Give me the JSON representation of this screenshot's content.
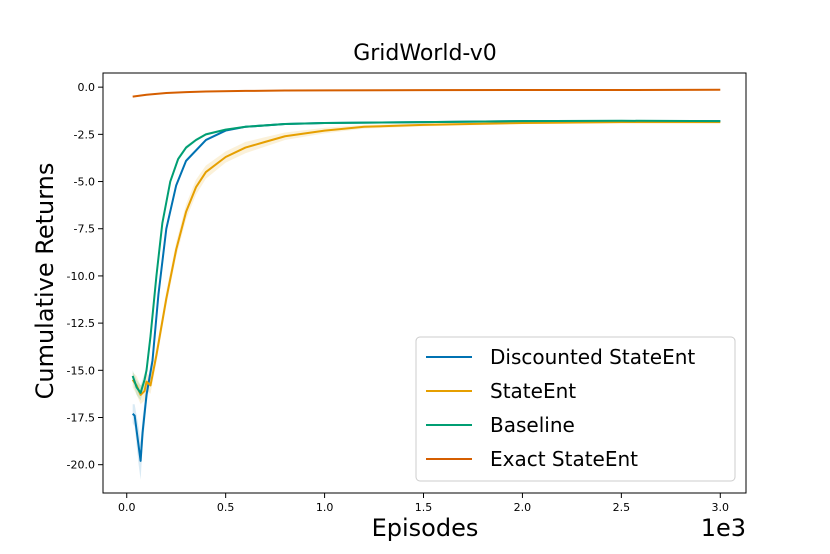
{
  "chart_data": {
    "type": "line",
    "title": "GridWorld-v0",
    "xlabel": "Episodes",
    "ylabel": "Cumulative Returns",
    "x_multiplier_label": "1e3",
    "xlim": [
      -0.12,
      3.13
    ],
    "ylim": [
      -21.5,
      0.75
    ],
    "x_ticks": [
      0.0,
      0.5,
      1.0,
      1.5,
      2.0,
      2.5,
      3.0
    ],
    "x_tick_labels": [
      "0.0",
      "0.5",
      "1.0",
      "1.5",
      "2.0",
      "2.5",
      "3.0"
    ],
    "y_ticks": [
      0.0,
      -2.5,
      -5.0,
      -7.5,
      -10.0,
      -12.5,
      -15.0,
      -17.5,
      -20.0
    ],
    "y_tick_labels": [
      "0.0",
      "-2.5",
      "-5.0",
      "-7.5",
      "-10.0",
      "-12.5",
      "-15.0",
      "-17.5",
      "-20.0"
    ],
    "grid": false,
    "legend_position": "lower-right",
    "series": [
      {
        "name": "Discounted StateEnt",
        "color": "#0072b2",
        "x": [
          0.03,
          0.04,
          0.05,
          0.06,
          0.07,
          0.08,
          0.1,
          0.13,
          0.16,
          0.2,
          0.25,
          0.3,
          0.4,
          0.5,
          0.6,
          0.8,
          1.0,
          1.5,
          2.0,
          2.5,
          3.0
        ],
        "y": [
          -17.3,
          -17.4,
          -18.2,
          -19.0,
          -19.8,
          -18.3,
          -16.3,
          -14.5,
          -11.0,
          -7.5,
          -5.2,
          -3.9,
          -2.8,
          -2.3,
          -2.1,
          -1.95,
          -1.9,
          -1.85,
          -1.8,
          -1.8,
          -1.8
        ],
        "band": [
          0.5,
          0.6,
          0.8,
          1.0,
          1.0,
          0.8,
          0.5,
          0.4,
          0.3,
          0.2,
          0.15,
          0.1,
          0.08,
          0.06,
          0.05,
          0.04,
          0.04,
          0.04,
          0.04,
          0.04,
          0.04
        ]
      },
      {
        "name": "StateEnt",
        "color": "#e69f00",
        "x": [
          0.03,
          0.05,
          0.07,
          0.09,
          0.1,
          0.12,
          0.15,
          0.2,
          0.25,
          0.3,
          0.35,
          0.4,
          0.5,
          0.6,
          0.7,
          0.8,
          1.0,
          1.2,
          1.5,
          2.0,
          2.5,
          3.0
        ],
        "y": [
          -15.5,
          -15.8,
          -16.3,
          -16.1,
          -15.6,
          -15.8,
          -14.2,
          -11.2,
          -8.6,
          -6.6,
          -5.3,
          -4.5,
          -3.7,
          -3.2,
          -2.9,
          -2.6,
          -2.3,
          -2.1,
          -2.0,
          -1.9,
          -1.85,
          -1.85
        ],
        "band": [
          0.4,
          0.5,
          0.5,
          0.5,
          0.45,
          0.45,
          0.4,
          0.4,
          0.4,
          0.4,
          0.4,
          0.35,
          0.3,
          0.3,
          0.25,
          0.2,
          0.15,
          0.1,
          0.08,
          0.06,
          0.05,
          0.05
        ]
      },
      {
        "name": "Baseline",
        "color": "#009e73",
        "x": [
          0.03,
          0.05,
          0.07,
          0.09,
          0.1,
          0.12,
          0.15,
          0.18,
          0.22,
          0.26,
          0.3,
          0.35,
          0.4,
          0.5,
          0.6,
          0.8,
          1.0,
          1.5,
          2.0,
          2.5,
          3.0
        ],
        "y": [
          -15.3,
          -15.9,
          -16.2,
          -15.5,
          -15.0,
          -13.2,
          -10.0,
          -7.2,
          -5.0,
          -3.8,
          -3.2,
          -2.8,
          -2.5,
          -2.25,
          -2.1,
          -1.95,
          -1.9,
          -1.85,
          -1.8,
          -1.78,
          -1.8
        ],
        "band": [
          0.3,
          0.4,
          0.4,
          0.35,
          0.3,
          0.3,
          0.25,
          0.2,
          0.15,
          0.12,
          0.1,
          0.08,
          0.07,
          0.06,
          0.05,
          0.04,
          0.04,
          0.04,
          0.04,
          0.04,
          0.04
        ]
      },
      {
        "name": "Exact StateEnt",
        "color": "#d55e00",
        "x": [
          0.03,
          0.1,
          0.2,
          0.3,
          0.4,
          0.6,
          0.8,
          1.0,
          1.5,
          2.0,
          2.5,
          3.0
        ],
        "y": [
          -0.5,
          -0.4,
          -0.31,
          -0.26,
          -0.23,
          -0.2,
          -0.18,
          -0.17,
          -0.16,
          -0.15,
          -0.15,
          -0.14
        ],
        "band": [
          0,
          0,
          0,
          0,
          0,
          0,
          0,
          0,
          0,
          0,
          0,
          0
        ]
      }
    ]
  }
}
